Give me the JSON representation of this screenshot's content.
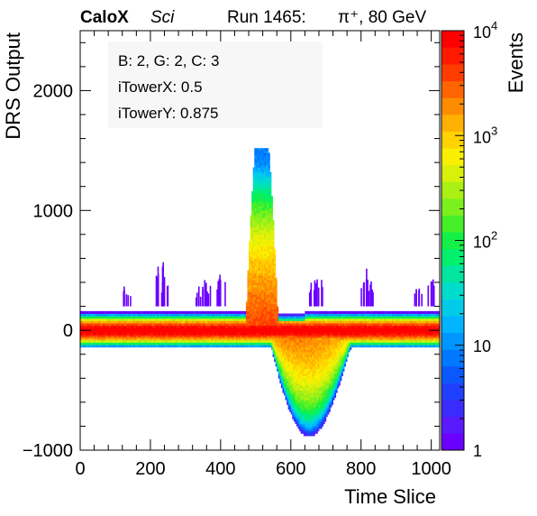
{
  "header": {
    "experiment": "CaloX",
    "detector": "Sci",
    "run": "Run 1465:",
    "beam": "π⁺, 80 GeV"
  },
  "info_box": {
    "line1": "B: 2, G: 2, C: 3",
    "line2": "iTowerX: 0.5",
    "line3": "iTowerY: 0.875"
  },
  "colorbar": {
    "label": "Events",
    "scale": "log",
    "range": [
      1,
      10000
    ],
    "tick_labels": [
      {
        "text": "1",
        "value": 1
      },
      {
        "text": "10",
        "value": 10
      },
      {
        "base": "10",
        "exp": "2",
        "value": 100
      },
      {
        "base": "10",
        "exp": "3",
        "value": 1000
      },
      {
        "base": "10",
        "exp": "4",
        "value": 10000
      }
    ],
    "palette": [
      "#6a00ff",
      "#5a1aff",
      "#3a2bff",
      "#2040ff",
      "#0a58ff",
      "#0078ff",
      "#0096ff",
      "#00b4ff",
      "#00cce8",
      "#00dccc",
      "#00e6a0",
      "#00f06e",
      "#14f048",
      "#46f028",
      "#7cf01e",
      "#aaf014",
      "#d8f00a",
      "#f8f000",
      "#ffd200",
      "#ffb000",
      "#ff8c00",
      "#ff6400",
      "#ff3c00",
      "#ff1a00",
      "#ff0000"
    ]
  },
  "chart_data": {
    "type": "heatmap",
    "title": "",
    "xlabel": "Time Slice",
    "ylabel": "DRS Output",
    "zlabel": "Events",
    "xlim": [
      0,
      1024
    ],
    "ylim": [
      -1000,
      2500
    ],
    "zlim": [
      1,
      10000
    ],
    "zscale": "log",
    "x_ticks": [
      0,
      200,
      400,
      600,
      800,
      1000
    ],
    "y_ticks": [
      -1000,
      0,
      1000,
      2000
    ],
    "bin_width_x": 4,
    "bin_height_y": 20,
    "baseline": {
      "y_min": -140,
      "y_max": 200,
      "peak_events": 10000
    },
    "pulse": {
      "x_start": 470,
      "x_peak": 530,
      "x_end": 640,
      "y_max": 1520,
      "y_min": -980
    },
    "noise_spikes": [
      {
        "x": 130,
        "y_max": 400
      },
      {
        "x": 225,
        "y_max": 640
      },
      {
        "x": 240,
        "y_max": 480
      },
      {
        "x": 340,
        "y_max": 380
      },
      {
        "x": 360,
        "y_max": 420
      },
      {
        "x": 400,
        "y_max": 520
      },
      {
        "x": 660,
        "y_max": 440
      },
      {
        "x": 680,
        "y_max": 500
      },
      {
        "x": 810,
        "y_max": 560
      },
      {
        "x": 830,
        "y_max": 420
      },
      {
        "x": 960,
        "y_max": 360
      },
      {
        "x": 1000,
        "y_max": 440
      }
    ]
  }
}
